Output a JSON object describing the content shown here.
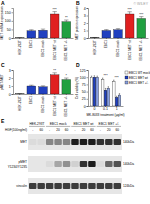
{
  "watermark": "© WILEY",
  "chart_data": [
    {
      "type": "bar",
      "title": "A",
      "ylabel": "MET mRNA expression",
      "categories": [
        "HEK-293T",
        "EBC1",
        "EBC1 mock",
        "EBC1 MET wt",
        "EBC1 MET +/-"
      ],
      "values": [
        1,
        42,
        45,
        140,
        95
      ],
      "errors": [
        0.5,
        6,
        7,
        14,
        10
      ],
      "colors": [
        "#000000",
        "#2040c0",
        "#2040c0",
        "#e02020",
        "#20a040"
      ],
      "ylim": [
        0,
        175
      ],
      "yticks": [
        0,
        50,
        100,
        150
      ],
      "annotations": [
        null,
        null,
        null,
        "***",
        "**"
      ]
    },
    {
      "type": "bar",
      "title": "B",
      "ylabel": "MET protein expression",
      "categories": [
        "HEK-293T",
        "EBC1",
        "EBC1 mock",
        "EBC1 MET wt",
        "EBC1 MET +/-"
      ],
      "values": [
        0.05,
        1,
        1.1,
        3.2,
        2.6
      ],
      "errors": [
        0.02,
        0.12,
        0.15,
        0.3,
        0.25
      ],
      "colors": [
        "#000000",
        "#2040c0",
        "#2040c0",
        "#e02020",
        "#20a040"
      ],
      "ylim": [
        0,
        4
      ],
      "yticks": [
        0,
        1,
        2,
        3,
        4
      ],
      "annotations": [
        null,
        null,
        null,
        "***",
        "***"
      ]
    },
    {
      "type": "bar",
      "title": "C",
      "ylabel": "pMET/MET",
      "categories": [
        "HEK-293T",
        "EBC1",
        "EBC1 mock",
        "EBC1 MET wt",
        "EBC1 MET +/-"
      ],
      "values": [
        0.02,
        1,
        0.9,
        2.4,
        1.8
      ],
      "errors": [
        0.01,
        0.1,
        0.12,
        0.25,
        0.2
      ],
      "colors": [
        "#000000",
        "#2040c0",
        "#2040c0",
        "#e02020",
        "#20a040"
      ],
      "ylim": [
        0,
        3
      ],
      "yticks": [
        0,
        1,
        2,
        3
      ],
      "annotations": [
        null,
        null,
        null,
        "**",
        "*"
      ]
    },
    {
      "type": "bar",
      "title": "D",
      "ylabel": "Cell viability (%)",
      "xlabel": "MK-8033 treatment (µg/ml)",
      "categories": [
        "0",
        "0.1",
        "1"
      ],
      "series": [
        {
          "name": "EBC1 WT mock",
          "color": "#ffffff",
          "values": [
            100,
            92,
            85
          ],
          "errors": [
            4,
            5,
            5
          ]
        },
        {
          "name": "EBC1 MET wt",
          "color": "#2040c0",
          "values": [
            100,
            55,
            30
          ],
          "errors": [
            5,
            6,
            4
          ]
        },
        {
          "name": "EBC1 MET +/-",
          "color": "#8aa0e0",
          "values": [
            100,
            62,
            38
          ],
          "errors": [
            4,
            5,
            5
          ]
        }
      ],
      "ylim": [
        0,
        125
      ],
      "yticks": [
        0,
        25,
        50,
        75,
        100,
        125
      ],
      "legend": "right",
      "annotations": [
        null,
        "***",
        "***"
      ]
    },
    {
      "type": "blot",
      "title": "E",
      "hgf_label": "HGF(100ng/ml)",
      "lane_groups": [
        {
          "label": "HEK-293T",
          "hgf": [
            "-",
            "60"
          ]
        },
        {
          "label": "EBC1 mock",
          "hgf": [
            "-",
            "20",
            "60"
          ]
        },
        {
          "label": "EBC1 MET wt",
          "hgf": [
            "-",
            "20",
            "60"
          ]
        },
        {
          "label": "EBC1 MET +/-",
          "hgf": [
            "-",
            "20",
            "60"
          ]
        }
      ],
      "rows": [
        {
          "label": "MET",
          "kda": "140kDa",
          "values": [
            0.05,
            0.05,
            0.45,
            0.45,
            0.45,
            0.95,
            0.95,
            0.95,
            0.85,
            0.85,
            0.85
          ]
        },
        {
          "label": "pMET",
          "sublabel": "Y1234/Y1235",
          "kda": "140kDa",
          "values": [
            0,
            0,
            0.05,
            0.3,
            0.4,
            0.1,
            0.85,
            0.95,
            0.05,
            0.6,
            0.7
          ]
        },
        {
          "label": "vinculin",
          "kda": "124kDa",
          "values": [
            0.8,
            0.8,
            0.8,
            0.8,
            0.8,
            0.8,
            0.8,
            0.8,
            0.8,
            0.8,
            0.8
          ]
        }
      ]
    }
  ]
}
